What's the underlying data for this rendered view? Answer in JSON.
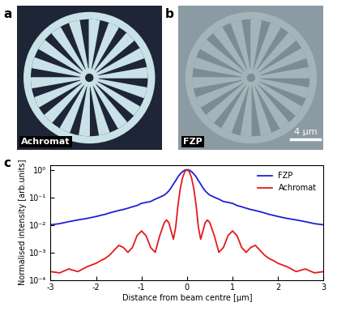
{
  "panel_labels": [
    "a",
    "b",
    "c"
  ],
  "images": [
    {
      "label": "Achromat"
    },
    {
      "label": "FZP",
      "scale_bar": "4 µm"
    }
  ],
  "chart_data": {
    "type": "line",
    "xlabel": "Distance from beam centre [µm]",
    "ylabel": "Normalised intensity [arb.units]",
    "log": "y",
    "legend": "upper right",
    "xlim": [
      -3,
      3
    ],
    "ylim": [
      0.0001,
      1.5
    ],
    "xticks": [
      -3,
      -2,
      -1,
      0,
      1,
      2,
      3
    ],
    "yticks": [
      {
        "value": 0.0001,
        "label": "10⁻⁴"
      },
      {
        "value": 0.001,
        "label": "10⁻³"
      },
      {
        "value": 0.01,
        "label": "10⁻²"
      },
      {
        "value": 0.1,
        "label": "10⁻¹"
      },
      {
        "value": 1,
        "label": "10⁰"
      }
    ],
    "x": [
      -3,
      -2.8,
      -2.6,
      -2.4,
      -2.2,
      -2.0,
      -1.9,
      -1.8,
      -1.7,
      -1.6,
      -1.5,
      -1.4,
      -1.3,
      -1.2,
      -1.1,
      -1.0,
      -0.9,
      -0.8,
      -0.7,
      -0.6,
      -0.5,
      -0.45,
      -0.4,
      -0.35,
      -0.3,
      -0.25,
      -0.2,
      -0.15,
      -0.1,
      -0.05,
      0,
      0.05,
      0.1,
      0.15,
      0.2,
      0.25,
      0.3,
      0.35,
      0.4,
      0.45,
      0.5,
      0.6,
      0.7,
      0.8,
      0.9,
      1.0,
      1.1,
      1.2,
      1.3,
      1.4,
      1.5,
      1.6,
      1.7,
      1.8,
      1.9,
      2.0,
      2.2,
      2.4,
      2.6,
      2.8,
      3
    ],
    "series": [
      {
        "name": "FZP",
        "color": "#1f1fd6",
        "values": [
          0.01,
          0.011,
          0.013,
          0.015,
          0.017,
          0.02,
          0.022,
          0.024,
          0.027,
          0.03,
          0.033,
          0.036,
          0.04,
          0.045,
          0.05,
          0.06,
          0.065,
          0.07,
          0.085,
          0.1,
          0.12,
          0.14,
          0.17,
          0.22,
          0.3,
          0.4,
          0.55,
          0.7,
          0.85,
          0.96,
          1,
          0.96,
          0.85,
          0.7,
          0.55,
          0.4,
          0.3,
          0.22,
          0.17,
          0.14,
          0.12,
          0.1,
          0.085,
          0.07,
          0.065,
          0.06,
          0.05,
          0.045,
          0.04,
          0.036,
          0.033,
          0.03,
          0.027,
          0.024,
          0.022,
          0.02,
          0.017,
          0.015,
          0.013,
          0.011,
          0.01
        ]
      },
      {
        "name": "Achromat",
        "color": "#e31a1c",
        "values": [
          0.0002,
          0.00018,
          0.00025,
          0.0002,
          0.0003,
          0.0004,
          0.0005,
          0.0006,
          0.0008,
          0.0012,
          0.0018,
          0.0015,
          0.001,
          0.0015,
          0.004,
          0.006,
          0.004,
          0.0015,
          0.001,
          0.004,
          0.012,
          0.015,
          0.012,
          0.006,
          0.003,
          0.008,
          0.05,
          0.2,
          0.5,
          0.85,
          1,
          0.85,
          0.5,
          0.2,
          0.05,
          0.008,
          0.003,
          0.006,
          0.012,
          0.015,
          0.012,
          0.004,
          0.001,
          0.0015,
          0.004,
          0.006,
          0.004,
          0.0015,
          0.001,
          0.0015,
          0.0018,
          0.0012,
          0.0008,
          0.0006,
          0.0005,
          0.0004,
          0.0003,
          0.0002,
          0.00025,
          0.00018,
          0.0002
        ]
      }
    ]
  }
}
